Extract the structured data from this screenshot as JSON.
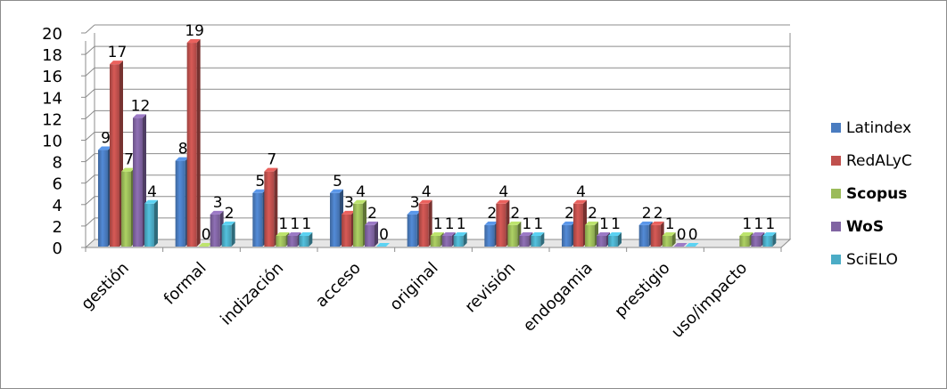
{
  "chart_data": {
    "type": "bar",
    "categories": [
      "gestión",
      "formal",
      "indización",
      "acceso",
      "original",
      "revisión",
      "endogamia",
      "prestigio",
      "uso/impacto"
    ],
    "series": [
      {
        "name": "Latindex",
        "color": "#4a7cc0",
        "values": [
          9,
          8,
          5,
          5,
          3,
          2,
          2,
          2,
          null
        ]
      },
      {
        "name": "RedALyC",
        "color": "#c0504d",
        "values": [
          17,
          19,
          7,
          3,
          4,
          4,
          4,
          2,
          null
        ]
      },
      {
        "name": "Scopus",
        "color": "#9bbb59",
        "values": [
          7,
          0,
          1,
          4,
          1,
          2,
          2,
          1,
          1
        ]
      },
      {
        "name": "WoS",
        "color": "#8064a2",
        "values": [
          12,
          3,
          1,
          2,
          1,
          1,
          1,
          0,
          1
        ]
      },
      {
        "name": "SciELO",
        "color": "#4bacc6",
        "values": [
          4,
          2,
          1,
          0,
          1,
          1,
          1,
          0,
          1
        ]
      }
    ],
    "bold_legend": [
      "Scopus",
      "WoS"
    ],
    "ylim": [
      0,
      20
    ],
    "yticks": [
      0,
      2,
      4,
      6,
      8,
      10,
      12,
      14,
      16,
      18,
      20
    ],
    "grid": true,
    "legend_position": "right",
    "title": "",
    "xlabel": "",
    "ylabel": ""
  }
}
